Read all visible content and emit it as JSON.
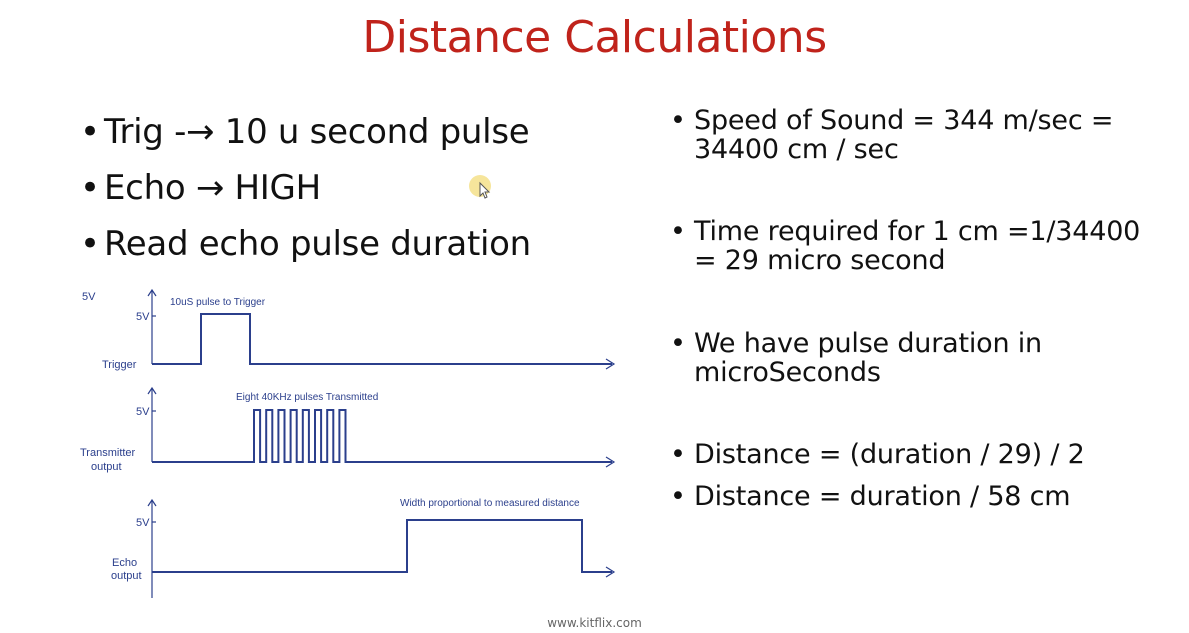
{
  "slide": {
    "title": "Distance Calculations",
    "footer": "www.kitflix.com"
  },
  "left_bullets": [
    "Trig -→ 10 u second pulse",
    "Echo → HIGH",
    "Read echo pulse duration"
  ],
  "right_bullets": [
    "Speed of Sound = 344 m/sec =\n34400 cm / sec",
    "Time required for 1 cm =1/34400\n= 29 micro second",
    "We have pulse duration in\nmicroSeconds",
    "Distance = (duration / 29) / 2",
    "Distance = duration / 58 cm"
  ],
  "bullet_glyph": "•",
  "diagram": {
    "corner_label": "5V",
    "trigger": {
      "level_label": "5V",
      "name": "Trigger",
      "annotation": "10uS pulse to Trigger"
    },
    "transmitter": {
      "level_label": "5V",
      "name_line1": "Transmitter",
      "name_line2": "output",
      "annotation": "Eight 40KHz pulses Transmitted",
      "pulse_count": 8
    },
    "echo": {
      "level_label": "5V",
      "name_line1": "Echo",
      "name_line2": "output",
      "annotation": "Width proportional to measured distance"
    }
  },
  "colors": {
    "title": "#c0231b",
    "waveform": "#2b3f8c",
    "cursor_highlight": "#f5e08a"
  }
}
